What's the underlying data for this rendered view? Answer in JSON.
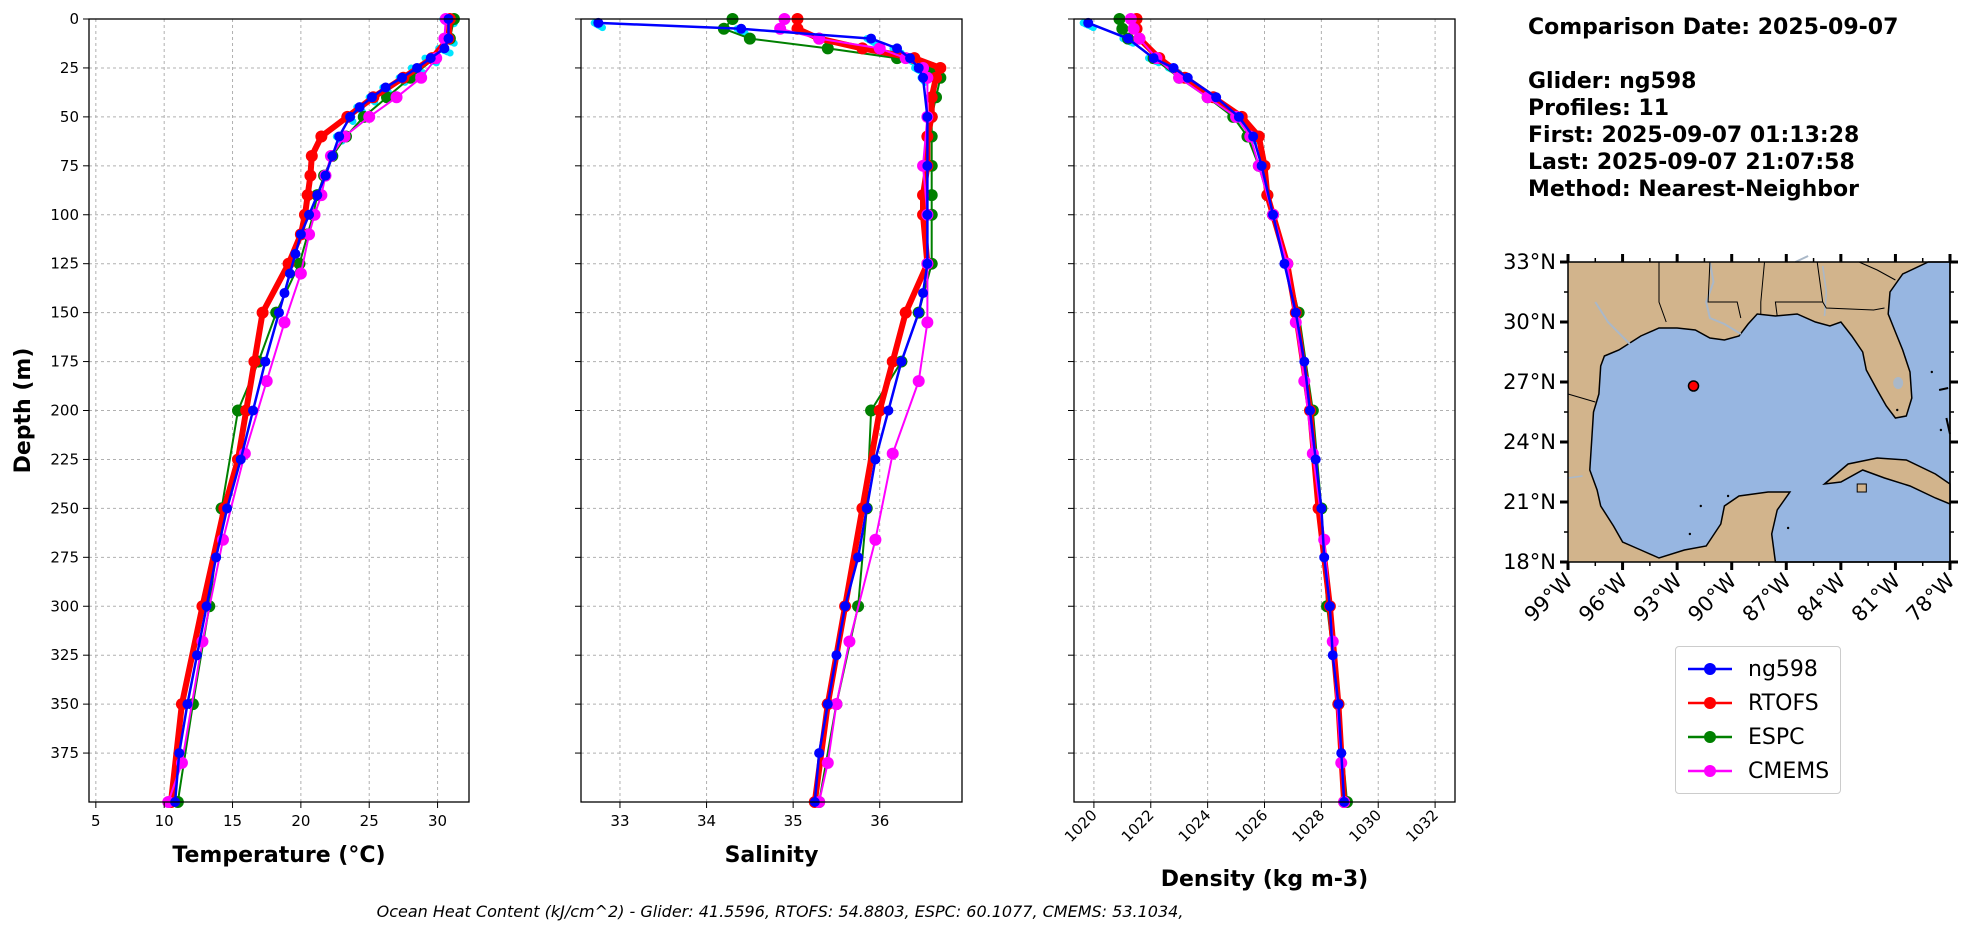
{
  "info": {
    "comparison_date": "Comparison Date: 2025-09-07",
    "glider": "Glider: ng598",
    "profiles": "Profiles: 11",
    "first": "First: 2025-09-07 01:13:28",
    "last": "Last: 2025-09-07 21:07:58",
    "method": "Method: Nearest-Neighbor"
  },
  "footer": "Ocean Heat Content (kJ/cm^2) - Glider: 41.5596,  RTOFS: 54.8803,  ESPC: 60.1077,  CMEMS: 53.1034,",
  "colors": {
    "ng598": "#0000ff",
    "ng598_profiles": "#00e5ff",
    "RTOFS": "#ff0000",
    "ESPC": "#008000",
    "CMEMS": "#ff00ff",
    "land": "#d2b48c",
    "ocean": "#97b6e1",
    "rivers": "#aab8c8"
  },
  "legend": [
    {
      "name": "ng598",
      "color": "#0000ff"
    },
    {
      "name": "RTOFS",
      "color": "#ff0000"
    },
    {
      "name": "ESPC",
      "color": "#008000"
    },
    {
      "name": "CMEMS",
      "color": "#ff00ff"
    }
  ],
  "chart_data": [
    {
      "type": "line",
      "xlabel": "Temperature (°C)",
      "ylabel": "Depth (m)",
      "xlim": [
        4.5,
        32.3
      ],
      "ylim": [
        400,
        0
      ],
      "xticks": [
        5,
        10,
        15,
        20,
        25,
        30
      ],
      "yticks": [
        0,
        25,
        50,
        75,
        100,
        125,
        150,
        175,
        200,
        225,
        250,
        275,
        300,
        325,
        350,
        375
      ],
      "grid": true,
      "series": [
        {
          "name": "ng598",
          "depth": [
            0,
            10,
            15,
            20,
            25,
            30,
            35,
            40,
            45,
            50,
            60,
            70,
            80,
            90,
            100,
            110,
            120,
            130,
            140,
            150,
            175,
            200,
            225,
            250,
            275,
            300,
            325,
            350,
            375,
            400
          ],
          "values": [
            30.8,
            30.8,
            30.5,
            29.5,
            28.5,
            27.4,
            26.2,
            25.2,
            24.3,
            23.6,
            22.8,
            22.3,
            21.8,
            21.2,
            20.6,
            20.0,
            19.6,
            19.2,
            18.8,
            18.4,
            17.4,
            16.5,
            15.6,
            14.6,
            13.8,
            13.1,
            12.4,
            11.7,
            11.1,
            10.8
          ]
        },
        {
          "name": "RTOFS",
          "depth": [
            0,
            10,
            20,
            30,
            40,
            50,
            60,
            70,
            80,
            90,
            100,
            110,
            125,
            150,
            175,
            200,
            225,
            250,
            300,
            350,
            400
          ],
          "values": [
            30.9,
            30.8,
            29.6,
            27.5,
            25.3,
            23.4,
            21.5,
            20.8,
            20.7,
            20.5,
            20.3,
            20.0,
            19.1,
            17.2,
            16.6,
            16.0,
            15.4,
            14.4,
            12.8,
            11.3,
            10.5
          ]
        },
        {
          "name": "ESPC",
          "depth": [
            0,
            10,
            20,
            30,
            40,
            50,
            60,
            70,
            80,
            90,
            100,
            110,
            125,
            150,
            175,
            200,
            250,
            300,
            350,
            400
          ],
          "values": [
            31.2,
            30.9,
            29.8,
            28.0,
            26.3,
            24.6,
            23.3,
            22.3,
            21.7,
            21.2,
            20.9,
            20.5,
            19.9,
            18.2,
            16.9,
            15.4,
            14.2,
            13.3,
            12.1,
            11.0
          ]
        },
        {
          "name": "CMEMS",
          "depth": [
            0,
            10,
            20,
            30,
            40,
            50,
            60,
            70,
            80,
            90,
            100,
            110,
            130,
            155,
            185,
            222,
            266,
            318,
            380,
            400
          ],
          "values": [
            30.6,
            30.5,
            29.9,
            28.8,
            27.0,
            25.0,
            23.2,
            22.2,
            21.8,
            21.5,
            21.0,
            20.6,
            20.0,
            18.8,
            17.5,
            15.9,
            14.3,
            12.8,
            11.3,
            10.3
          ]
        }
      ]
    },
    {
      "type": "line",
      "xlabel": "Salinity",
      "xlim": [
        32.55,
        36.95
      ],
      "ylim": [
        400,
        0
      ],
      "xticks": [
        33,
        34,
        35,
        36
      ],
      "grid": true,
      "series": [
        {
          "name": "ng598",
          "depth": [
            2,
            5,
            10,
            15,
            20,
            25,
            30,
            50,
            75,
            100,
            125,
            140,
            150,
            175,
            200,
            225,
            250,
            275,
            300,
            325,
            350,
            375,
            400
          ],
          "values": [
            32.75,
            34.4,
            35.9,
            36.2,
            36.35,
            36.45,
            36.5,
            36.55,
            36.55,
            36.55,
            36.55,
            36.5,
            36.45,
            36.25,
            36.1,
            35.95,
            35.85,
            35.75,
            35.6,
            35.5,
            35.4,
            35.3,
            35.25
          ]
        },
        {
          "name": "RTOFS",
          "depth": [
            0,
            5,
            10,
            15,
            20,
            25,
            30,
            40,
            50,
            60,
            75,
            90,
            100,
            125,
            150,
            175,
            200,
            250,
            300,
            350,
            400
          ],
          "values": [
            35.05,
            35.05,
            35.3,
            35.8,
            36.4,
            36.7,
            36.65,
            36.6,
            36.6,
            36.55,
            36.55,
            36.5,
            36.5,
            36.55,
            36.3,
            36.15,
            36.0,
            35.8,
            35.6,
            35.4,
            35.25
          ]
        },
        {
          "name": "ESPC",
          "depth": [
            0,
            5,
            10,
            15,
            20,
            25,
            30,
            40,
            50,
            60,
            75,
            90,
            100,
            125,
            150,
            175,
            200,
            250,
            300,
            350,
            400
          ],
          "values": [
            34.3,
            34.2,
            34.5,
            35.4,
            36.2,
            36.6,
            36.7,
            36.65,
            36.6,
            36.6,
            36.6,
            36.6,
            36.6,
            36.6,
            36.45,
            36.25,
            35.9,
            35.85,
            35.75,
            35.5,
            35.3
          ]
        },
        {
          "name": "CMEMS",
          "depth": [
            0,
            5,
            10,
            15,
            20,
            25,
            30,
            50,
            75,
            100,
            125,
            155,
            185,
            222,
            266,
            318,
            350,
            380,
            400
          ],
          "values": [
            34.9,
            34.85,
            35.3,
            36.0,
            36.3,
            36.5,
            36.55,
            36.55,
            36.5,
            36.55,
            36.55,
            36.55,
            36.45,
            36.15,
            35.95,
            35.65,
            35.5,
            35.4,
            35.3
          ]
        }
      ]
    },
    {
      "type": "line",
      "xlabel": "Density (kg m-3)",
      "xlim": [
        1019.3,
        1032.7
      ],
      "ylim": [
        400,
        0
      ],
      "xticks": [
        1020,
        1022,
        1024,
        1026,
        1028,
        1030,
        1032
      ],
      "grid": true,
      "series": [
        {
          "name": "ng598",
          "depth": [
            2,
            10,
            20,
            25,
            30,
            40,
            50,
            60,
            75,
            100,
            125,
            150,
            175,
            200,
            225,
            250,
            275,
            300,
            325,
            350,
            375,
            400
          ],
          "values": [
            1019.8,
            1021.2,
            1022.1,
            1022.8,
            1023.3,
            1024.3,
            1025.1,
            1025.6,
            1025.9,
            1026.3,
            1026.7,
            1027.1,
            1027.4,
            1027.6,
            1027.8,
            1028.0,
            1028.1,
            1028.3,
            1028.4,
            1028.6,
            1028.7,
            1028.8
          ]
        },
        {
          "name": "RTOFS",
          "depth": [
            0,
            5,
            10,
            20,
            30,
            40,
            50,
            60,
            75,
            90,
            100,
            125,
            150,
            200,
            250,
            300,
            350,
            400
          ],
          "values": [
            1021.5,
            1021.5,
            1021.6,
            1022.3,
            1023.2,
            1024.2,
            1025.2,
            1025.8,
            1026.0,
            1026.1,
            1026.3,
            1026.8,
            1027.1,
            1027.6,
            1027.9,
            1028.3,
            1028.6,
            1028.8
          ]
        },
        {
          "name": "ESPC",
          "depth": [
            0,
            5,
            10,
            20,
            30,
            40,
            50,
            60,
            75,
            90,
            100,
            125,
            150,
            200,
            250,
            300,
            350,
            400
          ],
          "values": [
            1020.9,
            1021.0,
            1021.2,
            1022.1,
            1023.0,
            1024.0,
            1024.9,
            1025.4,
            1025.8,
            1026.1,
            1026.3,
            1026.8,
            1027.2,
            1027.7,
            1028.0,
            1028.2,
            1028.6,
            1028.9
          ]
        },
        {
          "name": "CMEMS",
          "depth": [
            0,
            5,
            10,
            20,
            30,
            40,
            50,
            60,
            75,
            100,
            125,
            155,
            185,
            222,
            266,
            318,
            380,
            400
          ],
          "values": [
            1021.3,
            1021.4,
            1021.6,
            1022.2,
            1023.0,
            1024.0,
            1025.0,
            1025.5,
            1025.8,
            1026.3,
            1026.8,
            1027.1,
            1027.4,
            1027.7,
            1028.1,
            1028.4,
            1028.7,
            1028.8
          ]
        }
      ]
    },
    {
      "type": "map",
      "lon_range": [
        -99,
        -78
      ],
      "lat_range": [
        18,
        33
      ],
      "xticks": [
        "99°W",
        "96°W",
        "93°W",
        "90°W",
        "87°W",
        "84°W",
        "81°W",
        "78°W"
      ],
      "yticks": [
        "33°N",
        "30°N",
        "27°N",
        "24°N",
        "21°N",
        "18°N"
      ],
      "glider_position": {
        "lon": -92.1,
        "lat": 26.8
      }
    }
  ]
}
